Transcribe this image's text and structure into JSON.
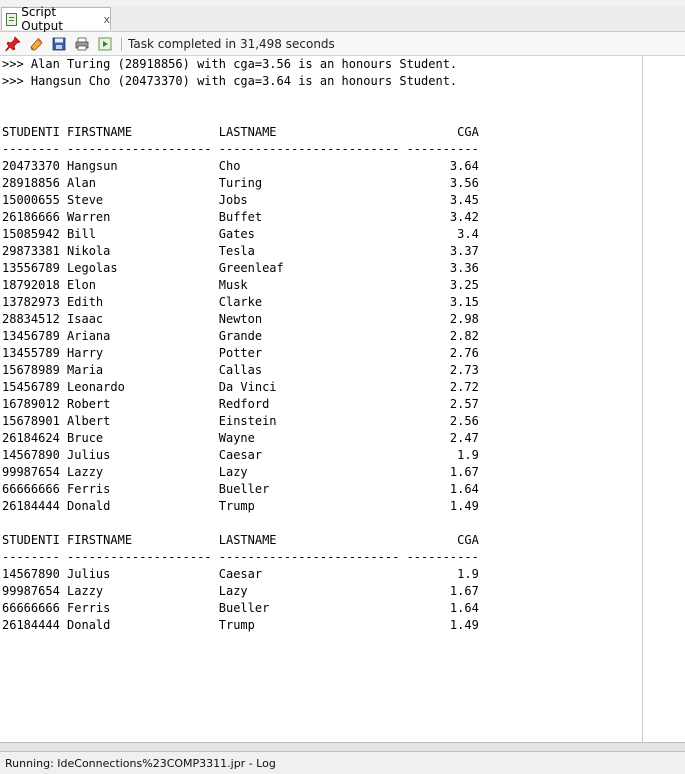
{
  "tab": {
    "title": "Script Output",
    "close": "x"
  },
  "toolbar": {
    "icons": [
      "pin-icon",
      "eraser-icon",
      "save-icon",
      "print-icon",
      "run-script-icon"
    ],
    "status": "Task completed in 31,498 seconds"
  },
  "output": {
    "messages": [
      ">>> Alan Turing (28918856) with cga=3.56 is an honours Student.",
      ">>> Hangsun Cho (20473370) with cga=3.64 is an honours Student."
    ],
    "columns": [
      "STUDENTI",
      "FIRSTNAME",
      "LASTNAME",
      "CGA"
    ],
    "table1": [
      [
        "20473370",
        "Hangsun",
        "Cho",
        "3.64"
      ],
      [
        "28918856",
        "Alan",
        "Turing",
        "3.56"
      ],
      [
        "15000655",
        "Steve",
        "Jobs",
        "3.45"
      ],
      [
        "26186666",
        "Warren",
        "Buffet",
        "3.42"
      ],
      [
        "15085942",
        "Bill",
        "Gates",
        "3.4"
      ],
      [
        "29873381",
        "Nikola",
        "Tesla",
        "3.37"
      ],
      [
        "13556789",
        "Legolas",
        "Greenleaf",
        "3.36"
      ],
      [
        "18792018",
        "Elon",
        "Musk",
        "3.25"
      ],
      [
        "13782973",
        "Edith",
        "Clarke",
        "3.15"
      ],
      [
        "28834512",
        "Isaac",
        "Newton",
        "2.98"
      ],
      [
        "13456789",
        "Ariana",
        "Grande",
        "2.82"
      ],
      [
        "13455789",
        "Harry",
        "Potter",
        "2.76"
      ],
      [
        "15678989",
        "Maria",
        "Callas",
        "2.73"
      ],
      [
        "15456789",
        "Leonardo",
        "Da Vinci",
        "2.72"
      ],
      [
        "16789012",
        "Robert",
        "Redford",
        "2.57"
      ],
      [
        "15678901",
        "Albert",
        "Einstein",
        "2.56"
      ],
      [
        "26184624",
        "Bruce",
        "Wayne",
        "2.47"
      ],
      [
        "14567890",
        "Julius",
        "Caesar",
        "1.9"
      ],
      [
        "99987654",
        "Lazzy",
        "Lazy",
        "1.67"
      ],
      [
        "66666666",
        "Ferris",
        "Bueller",
        "1.64"
      ],
      [
        "26184444",
        "Donald",
        "Trump",
        "1.49"
      ]
    ],
    "table2": [
      [
        "14567890",
        "Julius",
        "Caesar",
        "1.9"
      ],
      [
        "99987654",
        "Lazzy",
        "Lazy",
        "1.67"
      ],
      [
        "66666666",
        "Ferris",
        "Bueller",
        "1.64"
      ],
      [
        "26184444",
        "Donald",
        "Trump",
        "1.49"
      ]
    ]
  },
  "status_bar": {
    "text": "Running: IdeConnections%23COMP3311.jpr - Log"
  }
}
